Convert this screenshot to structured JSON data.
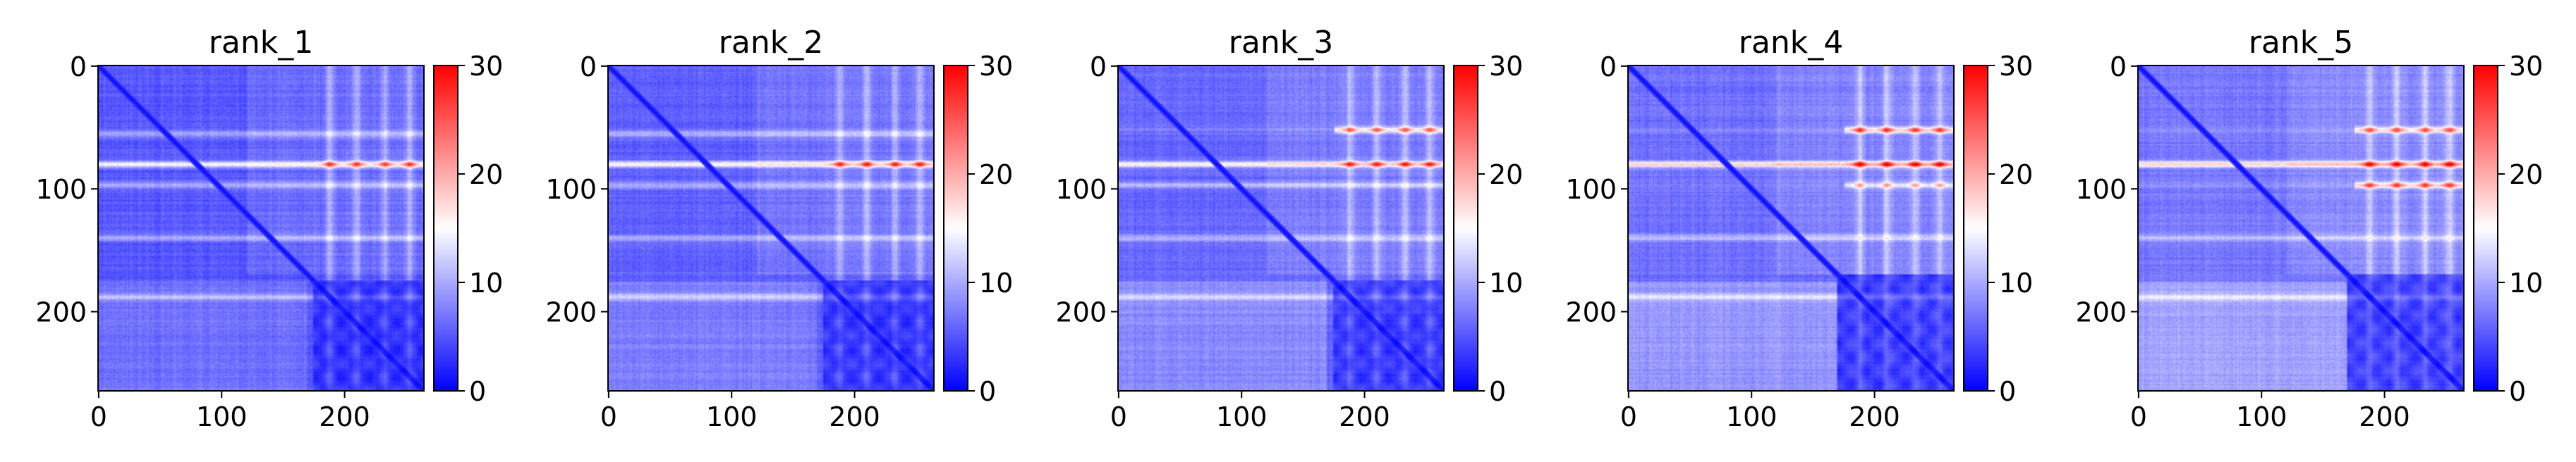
{
  "chart_data": {
    "type": "heatmap",
    "n": 265,
    "colormap": "bwr",
    "vmin": 0,
    "vmax": 30,
    "axis_ticks": [
      0,
      100,
      200
    ],
    "colorbar_ticks": [
      0,
      10,
      20,
      30
    ],
    "panels": [
      {
        "title": "rank_1",
        "hot_rows": [
          {
            "row": 80,
            "value": 21
          }
        ],
        "streak_rows": [
          55,
          97,
          140,
          188
        ],
        "streak_cols": [
          188,
          210,
          233,
          253
        ],
        "diag_block_start": 175
      },
      {
        "title": "rank_2",
        "hot_rows": [
          {
            "row": 80,
            "value": 22
          }
        ],
        "streak_rows": [
          55,
          97,
          140,
          188
        ],
        "streak_cols": [
          188,
          210,
          233,
          253
        ],
        "diag_block_start": 175
      },
      {
        "title": "rank_3",
        "hot_rows": [
          {
            "row": 52,
            "value": 18
          },
          {
            "row": 80,
            "value": 22
          }
        ],
        "streak_rows": [
          97,
          140,
          188
        ],
        "streak_cols": [
          188,
          210,
          233,
          253
        ],
        "diag_block_start": 175
      },
      {
        "title": "rank_4",
        "hot_rows": [
          {
            "row": 52,
            "value": 20
          },
          {
            "row": 80,
            "value": 24
          },
          {
            "row": 97,
            "value": 14
          }
        ],
        "streak_rows": [
          140,
          188
        ],
        "streak_cols": [
          188,
          210,
          233,
          253
        ],
        "diag_block_start": 170
      },
      {
        "title": "rank_5",
        "hot_rows": [
          {
            "row": 52,
            "value": 18
          },
          {
            "row": 80,
            "value": 23
          },
          {
            "row": 97,
            "value": 19
          }
        ],
        "streak_rows": [
          140,
          188
        ],
        "streak_cols": [
          188,
          210,
          233,
          253
        ],
        "diag_block_start": 170
      }
    ]
  }
}
